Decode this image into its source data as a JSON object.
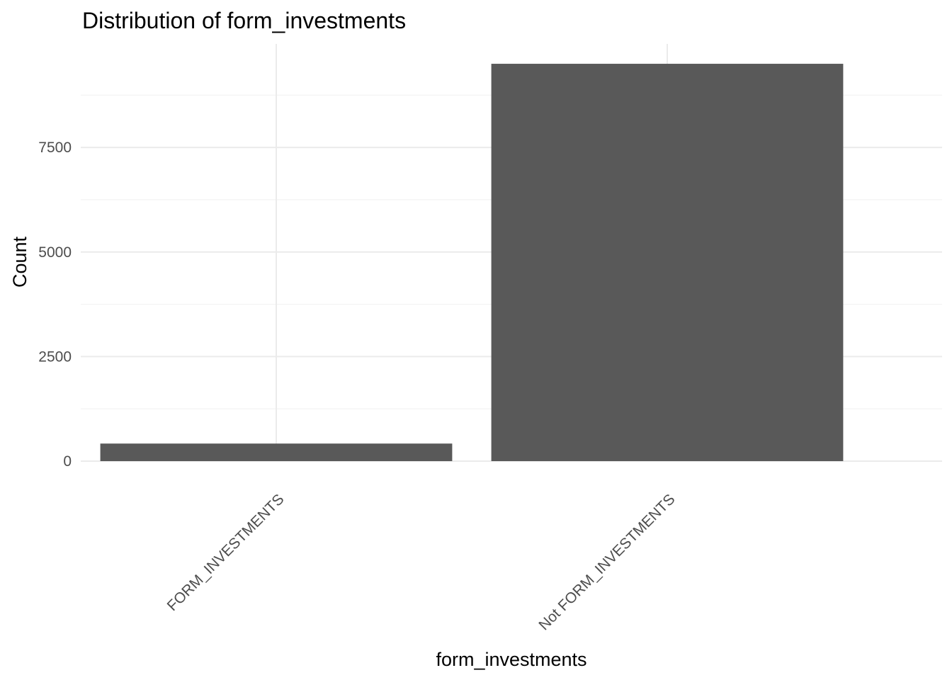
{
  "chart_data": {
    "type": "bar",
    "title": "Distribution of form_investments",
    "xlabel": "form_investments",
    "ylabel": "Count",
    "categories": [
      "FORM_INVESTMENTS",
      "Not FORM_INVESTMENTS"
    ],
    "values": [
      420,
      9500
    ],
    "ylim": [
      0,
      9975
    ],
    "yticks": [
      0,
      2500,
      5000,
      7500
    ],
    "ytick_labels": [
      "0",
      "2500",
      "5000",
      "7500"
    ],
    "bar_color": "#595959",
    "grid": true,
    "legend": "none",
    "x_tick_label_rotation": "45 degrees"
  }
}
